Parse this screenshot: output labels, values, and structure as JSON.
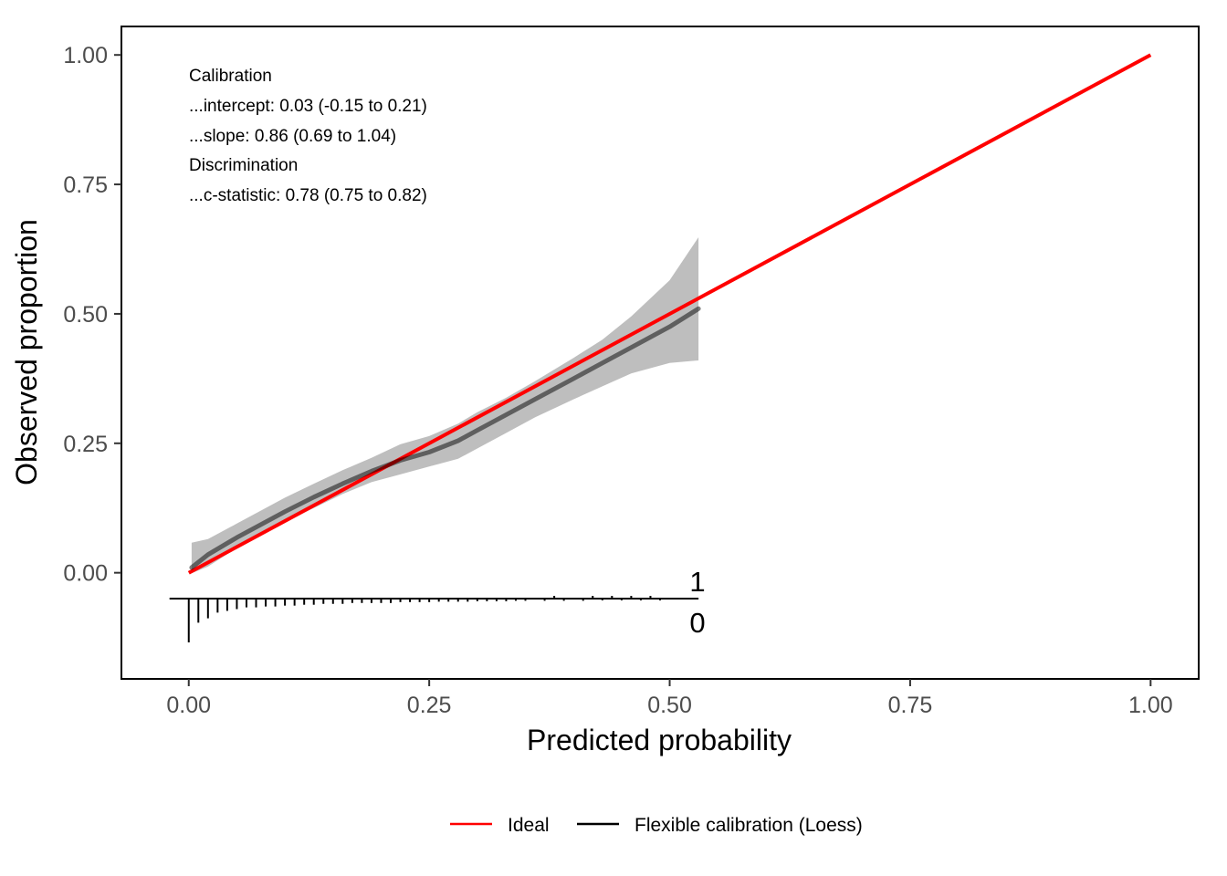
{
  "chart_data": {
    "type": "line",
    "title": "",
    "xlabel": "Predicted probability",
    "ylabel": "Observed proportion",
    "xlim": [
      -0.07,
      1.05
    ],
    "ylim": [
      -0.205,
      1.055
    ],
    "x_ticks": [
      0.0,
      0.25,
      0.5,
      0.75,
      1.0
    ],
    "x_tick_labels": [
      "0.00",
      "0.25",
      "0.50",
      "0.75",
      "1.00"
    ],
    "y_ticks": [
      0.0,
      0.25,
      0.5,
      0.75,
      1.0
    ],
    "y_tick_labels": [
      "0.00",
      "0.25",
      "0.50",
      "0.75",
      "1.00"
    ],
    "grid": false,
    "legend_position": "bottom",
    "annotations": [
      "Calibration",
      "...intercept: 0.03 (-0.15 to 0.21)",
      "...slope: 0.86 (0.69 to 1.04)",
      "Discrimination",
      "...c-statistic: 0.78 (0.75 to 0.82)"
    ],
    "series": [
      {
        "name": "Ideal",
        "color": "#ff0000",
        "x": [
          0.0,
          1.0
        ],
        "y": [
          0.0,
          1.0
        ]
      },
      {
        "name": "Flexible calibration (Loess)",
        "color": "#000000",
        "x": [
          0.003,
          0.02,
          0.05,
          0.08,
          0.1,
          0.13,
          0.16,
          0.19,
          0.22,
          0.25,
          0.28,
          0.3,
          0.33,
          0.36,
          0.4,
          0.43,
          0.46,
          0.5,
          0.53
        ],
        "y": [
          0.01,
          0.035,
          0.068,
          0.098,
          0.118,
          0.146,
          0.172,
          0.196,
          0.217,
          0.233,
          0.255,
          0.275,
          0.305,
          0.335,
          0.375,
          0.405,
          0.435,
          0.475,
          0.51
        ],
        "ci_lower": [
          -0.001,
          0.012,
          0.048,
          0.078,
          0.098,
          0.125,
          0.152,
          0.175,
          0.19,
          0.205,
          0.22,
          0.24,
          0.27,
          0.3,
          0.335,
          0.36,
          0.385,
          0.405,
          0.41
        ],
        "ci_upper": [
          0.058,
          0.065,
          0.095,
          0.125,
          0.145,
          0.172,
          0.198,
          0.222,
          0.248,
          0.264,
          0.288,
          0.31,
          0.338,
          0.37,
          0.415,
          0.45,
          0.495,
          0.565,
          0.648
        ]
      }
    ],
    "rug": {
      "upper_label": "1",
      "lower_label": "0",
      "range": [
        -0.02,
        0.53
      ],
      "event_0_x": [
        0.0,
        0.01,
        0.02,
        0.03,
        0.04,
        0.05,
        0.06,
        0.07,
        0.08,
        0.09,
        0.1,
        0.11,
        0.12,
        0.13,
        0.14,
        0.15,
        0.16,
        0.17,
        0.18,
        0.19,
        0.2,
        0.21,
        0.22,
        0.23,
        0.24,
        0.25,
        0.26,
        0.27,
        0.28,
        0.29,
        0.3,
        0.31,
        0.32,
        0.33,
        0.34,
        0.35,
        0.37,
        0.39,
        0.41,
        0.43,
        0.45,
        0.47,
        0.49
      ],
      "event_0_len": [
        1.0,
        0.55,
        0.45,
        0.32,
        0.28,
        0.24,
        0.2,
        0.2,
        0.18,
        0.18,
        0.16,
        0.16,
        0.14,
        0.14,
        0.12,
        0.12,
        0.12,
        0.1,
        0.1,
        0.1,
        0.1,
        0.1,
        0.08,
        0.08,
        0.08,
        0.08,
        0.07,
        0.07,
        0.07,
        0.07,
        0.06,
        0.06,
        0.06,
        0.06,
        0.05,
        0.05,
        0.05,
        0.05,
        0.05,
        0.04,
        0.04,
        0.04,
        0.04
      ],
      "event_1_x": [
        0.38,
        0.42,
        0.44,
        0.46,
        0.48
      ]
    }
  }
}
